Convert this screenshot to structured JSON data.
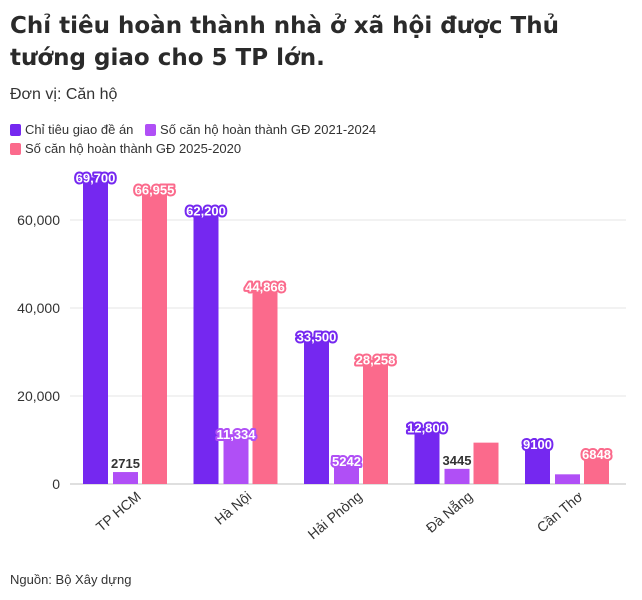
{
  "title": "Chỉ tiêu hoàn thành nhà ở xã hội được Thủ tướng giao cho 5 TP lớn.",
  "subtitle": "Đơn vị: Căn hộ",
  "source": "Nguồn: Bộ Xây dựng",
  "chart_data": {
    "type": "bar",
    "title": "Chỉ tiêu hoàn thành nhà ở xã hội được Thủ tướng giao cho 5 TP lớn.",
    "subtitle": "Đơn vị: Căn hộ",
    "categories": [
      "TP HCM",
      "Hà Nội",
      "Hải Phòng",
      "Đà Nẵng",
      "Cần Thơ"
    ],
    "series": [
      {
        "name": "Chỉ tiêu giao đề án",
        "color": "#7528f0",
        "values": [
          69700,
          62200,
          33500,
          12800,
          9100
        ],
        "labels": [
          "69,700",
          "62,200",
          "33,500",
          "12,800",
          "9100"
        ]
      },
      {
        "name": "Số căn hộ hoàn thành GĐ 2021-2024",
        "color": "#b04ff6",
        "values": [
          2715,
          11334,
          5242,
          3445,
          2200
        ],
        "labels": [
          "2715",
          "11,334",
          "5242",
          "3445",
          ""
        ]
      },
      {
        "name": "Số căn hộ hoàn thành GĐ 2025-2020",
        "color": "#fb6a8c",
        "values": [
          66955,
          44866,
          28258,
          9400,
          6848
        ],
        "labels": [
          "66,955",
          "44,866",
          "28,258",
          "",
          "6848"
        ]
      }
    ],
    "yticks": [
      0,
      20000,
      40000,
      60000
    ],
    "ytick_labels": [
      "0",
      "20,000",
      "40,000",
      "60,000"
    ],
    "ylim": [
      0,
      70000
    ],
    "grid": true,
    "legend": "top-left"
  }
}
